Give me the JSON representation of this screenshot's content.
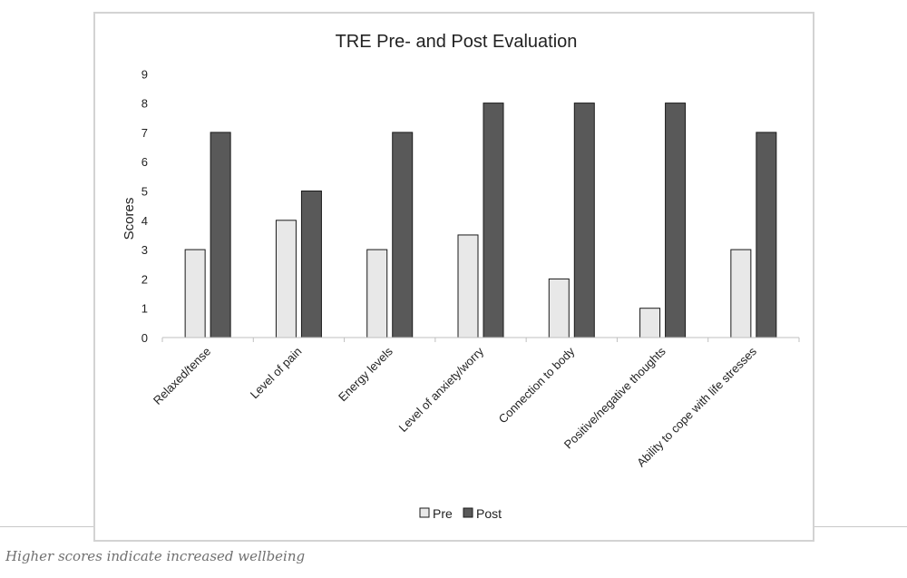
{
  "chart_data": {
    "type": "bar",
    "title": "TRE Pre- and Post Evaluation",
    "xlabel": "",
    "ylabel": "Scores",
    "ylim": [
      0,
      9
    ],
    "yticks": [
      0,
      1,
      2,
      3,
      4,
      5,
      6,
      7,
      8,
      9
    ],
    "grid": false,
    "legend_position": "bottom",
    "categories": [
      "Relaxed/tense",
      "Level of pain",
      "Energy levels",
      "Level of anxiety/worry",
      "Connection to body",
      "Positive/negative thoughts",
      "Ability to cope with life stresses"
    ],
    "series": [
      {
        "name": "Pre",
        "color": "#e8e8e8",
        "values": [
          3,
          4,
          3,
          3.5,
          2,
          1,
          3
        ]
      },
      {
        "name": "Post",
        "color": "#595959",
        "values": [
          7,
          5,
          7,
          8,
          8,
          8,
          7
        ]
      }
    ]
  },
  "caption": "Higher scores indicate increased wellbeing"
}
